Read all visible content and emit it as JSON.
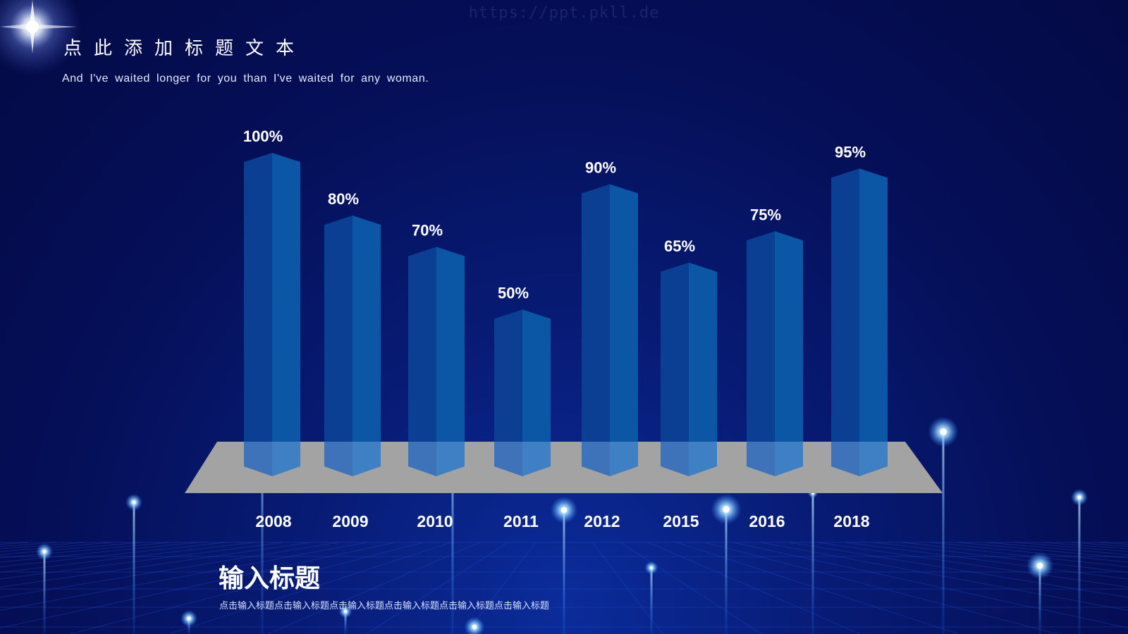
{
  "watermark": "https://ppt.pkll.de",
  "header": {
    "title": "点此添加标题文本",
    "subtitle": "And I've waited longer for you than I've waited for any woman."
  },
  "footer": {
    "section_title": "输入标题",
    "section_body": "点击输入标题点击输入标题点击输入标题点击输入标题点击输入标题点击输入标题"
  },
  "colors": {
    "bar_front": "#0a3f93",
    "bar_side": "#0b57a6",
    "platform": "#a3a3a3",
    "text": "#ffffff"
  },
  "chart_data": {
    "type": "bar",
    "categories": [
      "2008",
      "2009",
      "2010",
      "2011",
      "2012",
      "2015",
      "2016",
      "2018"
    ],
    "values": [
      100,
      80,
      70,
      50,
      90,
      65,
      75,
      95
    ],
    "data_labels": [
      "100%",
      "80%",
      "70%",
      "50%",
      "90%",
      "65%",
      "75%",
      "95%"
    ],
    "unit": "%",
    "ylim": [
      0,
      100
    ],
    "grid": false,
    "legend": "none"
  }
}
